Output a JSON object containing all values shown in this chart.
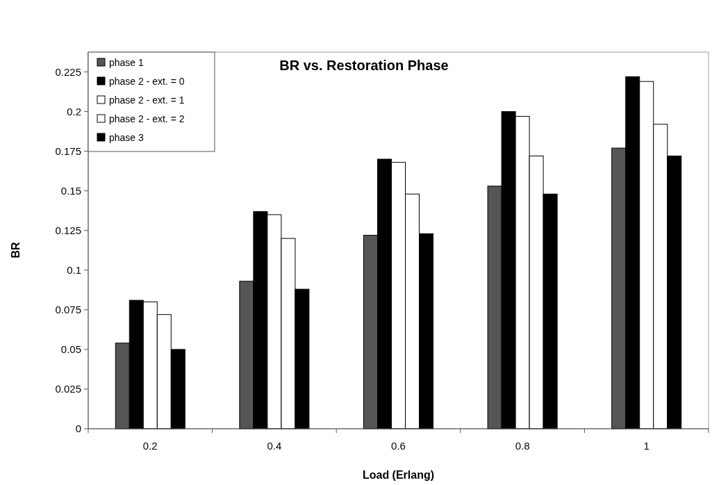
{
  "chart_data": {
    "type": "bar",
    "title": "BR vs. Restoration Phase",
    "xlabel": "Load (Erlang)",
    "ylabel": "BR",
    "categories": [
      "0.2",
      "0.4",
      "0.6",
      "0.8",
      "1"
    ],
    "series": [
      {
        "name": "phase 1",
        "color": "#555555",
        "values": [
          0.054,
          0.093,
          0.122,
          0.153,
          0.177
        ]
      },
      {
        "name": "phase 2 - ext. = 0",
        "color": "#000000",
        "values": [
          0.081,
          0.137,
          0.17,
          0.2,
          0.222
        ]
      },
      {
        "name": "phase 2 - ext. = 1",
        "color": "#ffffff",
        "values": [
          0.08,
          0.135,
          0.168,
          0.197,
          0.219
        ]
      },
      {
        "name": "phase 2 - ext. = 2",
        "color": "#ffffff",
        "values": [
          0.072,
          0.12,
          0.148,
          0.172,
          0.192
        ]
      },
      {
        "name": "phase 3",
        "color": "#000000",
        "values": [
          0.05,
          0.088,
          0.123,
          0.148,
          0.172
        ]
      }
    ],
    "ylim": [
      0,
      0.2375
    ],
    "yticks": [
      0,
      0.025,
      0.05,
      0.075,
      0.1,
      0.125,
      0.15,
      0.175,
      0.2,
      0.225
    ],
    "legend": "top left"
  }
}
